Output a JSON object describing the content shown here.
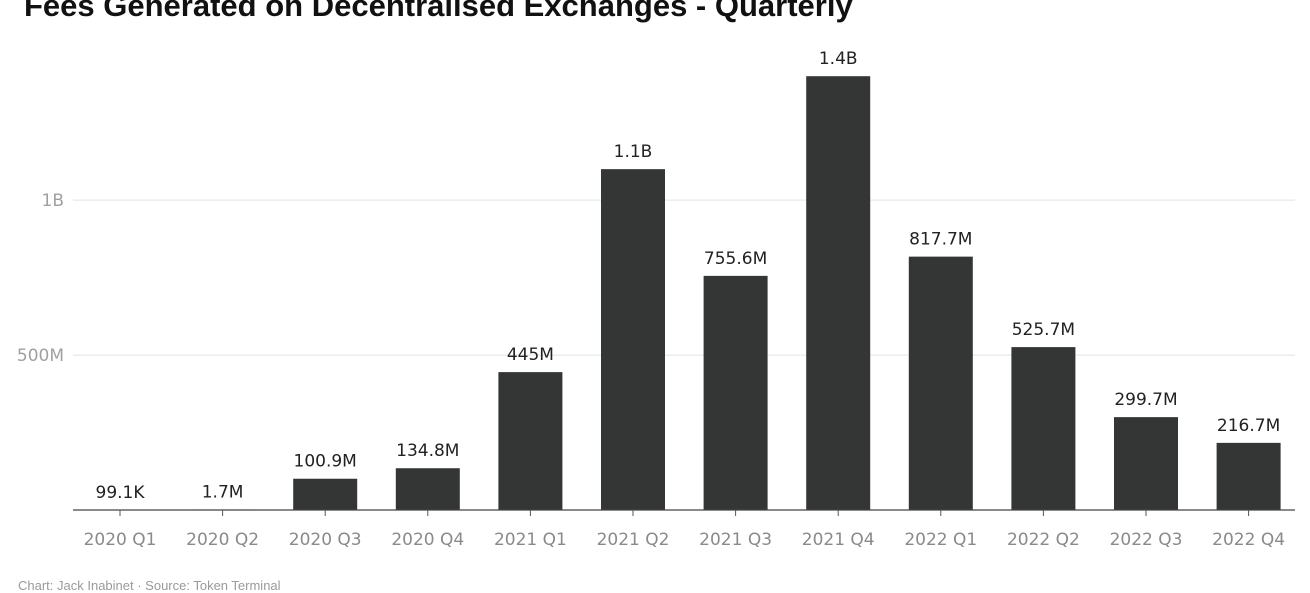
{
  "chart_data": {
    "type": "bar",
    "title": "Fees Generated on Decentralised Exchanges - Quarterly",
    "xlabel": "",
    "ylabel": "",
    "categories": [
      "2020 Q1",
      "2020 Q2",
      "2020 Q3",
      "2020 Q4",
      "2021 Q1",
      "2021 Q2",
      "2021 Q3",
      "2021 Q4",
      "2022 Q1",
      "2022 Q2",
      "2022 Q3",
      "2022 Q4"
    ],
    "values": [
      99100,
      1700000,
      100900000,
      134800000,
      445000000,
      1100000000,
      755600000,
      1400000000,
      817700000,
      525700000,
      299700000,
      216700000
    ],
    "data_labels": [
      "99.1K",
      "1.7M",
      "100.9M",
      "134.8M",
      "445M",
      "1.1B",
      "755.6M",
      "1.4B",
      "817.7M",
      "525.7M",
      "299.7M",
      "216.7M"
    ],
    "ylim": [
      0,
      1420000000
    ],
    "y_ticks": [
      {
        "value": 500000000,
        "label": "500M"
      },
      {
        "value": 1000000000,
        "label": "1B"
      }
    ],
    "grid": "horizontal",
    "legend": "none",
    "bar_color": "#333634"
  },
  "footer": "Chart: Jack Inabinet · Source: Token Terminal"
}
